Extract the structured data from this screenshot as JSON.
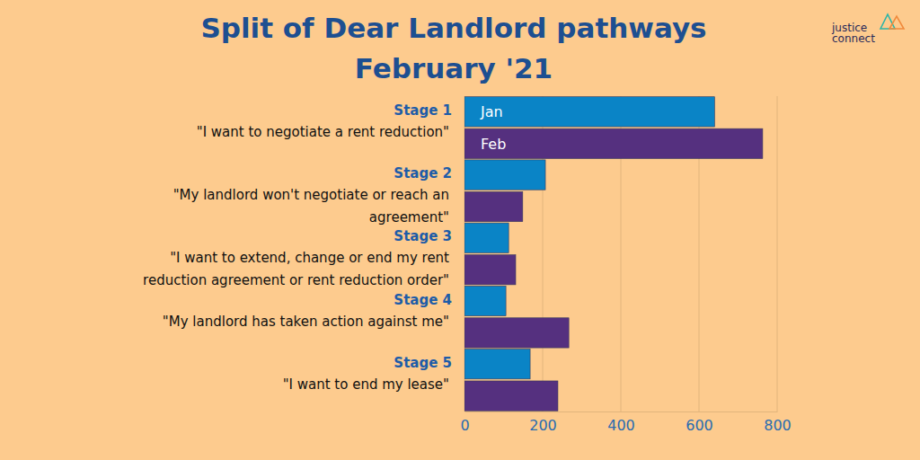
{
  "chart_data": {
    "type": "bar",
    "orientation": "horizontal",
    "title": "Split of Dear Landlord pathways",
    "subtitle": "February '21",
    "annotations": [
      "justice",
      "connect"
    ],
    "categories": [
      "Stage 1",
      "Stage 2",
      "Stage 3",
      "Stage 4",
      "Stage 5"
    ],
    "descriptions": [
      [
        "\"I want to negotiate a rent reduction\""
      ],
      [
        "\"My landlord won't negotiate or reach an",
        "agreement\""
      ],
      [
        "\"I want to extend, change or end my rent",
        "reduction agreement or rent reduction order\""
      ],
      [
        "\"My landlord has taken action against me\""
      ],
      [
        "\"I want to end my lease\""
      ]
    ],
    "series": [
      {
        "name": "Jan",
        "color": "#0a84c6",
        "values": [
          640,
          207,
          113,
          106,
          168
        ]
      },
      {
        "name": "Feb",
        "color": "#55307f",
        "values": [
          763,
          149,
          131,
          267,
          239
        ]
      }
    ],
    "xlim": [
      0,
      800
    ],
    "xticks": [
      0,
      200,
      400,
      600,
      800
    ],
    "grid": true
  }
}
